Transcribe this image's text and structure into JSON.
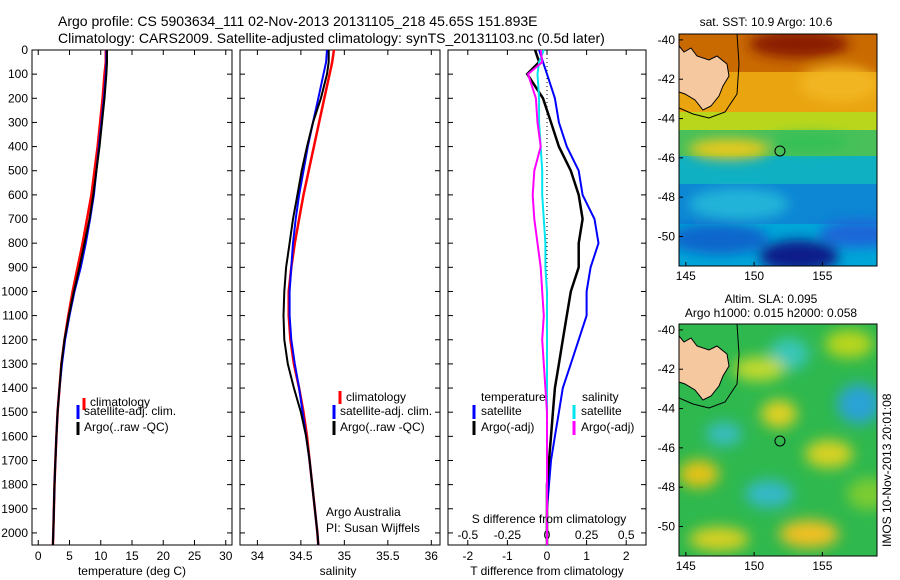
{
  "header": {
    "title_line1": "Argo profile: CS 5903634_111 02-Nov-2013 20131105_218 45.65S 151.893E",
    "title_line2": "Climatology: CARS2009. Satellite-adjusted climatology: synTS_20131103.nc (0.5d later)"
  },
  "depth_axis": {
    "ylim": [
      0,
      2050
    ],
    "ticks": [
      0,
      100,
      200,
      300,
      400,
      500,
      600,
      700,
      800,
      900,
      1000,
      1100,
      1200,
      1300,
      1400,
      1500,
      1600,
      1700,
      1800,
      1900,
      2000
    ]
  },
  "colors": {
    "climatology": "#ff0000",
    "satellite": "#0000ff",
    "argo": "#000000",
    "sal_satellite": "#00e5ee",
    "sal_argo": "#ff00ff"
  },
  "chart_data": [
    {
      "type": "line",
      "xlabel": "temperature (deg C)",
      "xlim": [
        -1,
        31
      ],
      "xticks": [
        0,
        5,
        10,
        15,
        20,
        25,
        30
      ],
      "legend": [
        "climatology",
        "satellite-adj. clim.",
        "Argo(..raw -QC)"
      ],
      "series": [
        {
          "name": "climatology",
          "depth": [
            0,
            50,
            100,
            200,
            300,
            400,
            500,
            600,
            700,
            800,
            900,
            1000,
            1100,
            1200,
            1300,
            1400,
            1500,
            1600,
            1700,
            1800,
            1900,
            2000,
            2050
          ],
          "values": [
            10.8,
            10.8,
            10.6,
            10.3,
            9.9,
            9.5,
            9.0,
            8.5,
            7.8,
            7.1,
            6.3,
            5.5,
            4.8,
            4.2,
            3.7,
            3.4,
            3.1,
            2.9,
            2.75,
            2.6,
            2.5,
            2.4,
            2.35
          ]
        },
        {
          "name": "satellite-adj. clim.",
          "depth": [
            0,
            50,
            100,
            200,
            300,
            400,
            500,
            600,
            700,
            800,
            900,
            1000,
            1100,
            1200,
            1300,
            1400,
            1500,
            1600,
            1700,
            1800,
            1900,
            2000,
            2050
          ],
          "values": [
            10.9,
            10.9,
            10.8,
            10.5,
            10.1,
            9.7,
            9.3,
            8.9,
            8.3,
            7.6,
            6.8,
            5.8,
            5.0,
            4.3,
            3.8,
            3.4,
            3.1,
            2.9,
            2.75,
            2.6,
            2.5,
            2.4,
            2.35
          ]
        },
        {
          "name": "Argo(..raw -QC)",
          "depth": [
            0,
            50,
            100,
            200,
            300,
            400,
            500,
            600,
            700,
            800,
            900,
            1000,
            1100,
            1200,
            1300,
            1400,
            1500,
            1600,
            1700,
            1800,
            1900,
            2000,
            2050
          ],
          "values": [
            11.0,
            11.0,
            10.9,
            10.6,
            10.2,
            9.8,
            9.3,
            8.8,
            8.2,
            7.4,
            6.6,
            5.7,
            4.9,
            4.2,
            3.7,
            3.4,
            3.1,
            2.9,
            2.75,
            2.6,
            2.5,
            2.4,
            2.35
          ]
        }
      ]
    },
    {
      "type": "line",
      "xlabel": "salinity",
      "xlim": [
        33.8,
        36.1
      ],
      "xticks": [
        34,
        34.5,
        35,
        35.5,
        36
      ],
      "legend": [
        "climatology",
        "satellite-adj. clim.",
        "Argo(..raw -QC)"
      ],
      "annotation": [
        "Argo Australia",
        "PI: Susan Wijffels"
      ],
      "series": [
        {
          "name": "climatology",
          "depth": [
            0,
            50,
            100,
            200,
            300,
            400,
            500,
            600,
            700,
            800,
            900,
            1000,
            1100,
            1200,
            1300,
            1400,
            1500,
            1600,
            1700,
            1800,
            1900,
            2000,
            2050
          ],
          "values": [
            34.88,
            34.86,
            34.83,
            34.77,
            34.71,
            34.65,
            34.59,
            34.53,
            34.48,
            34.43,
            34.39,
            34.36,
            34.36,
            34.38,
            34.42,
            34.48,
            34.53,
            34.57,
            34.6,
            34.63,
            34.66,
            34.69,
            34.7
          ]
        },
        {
          "name": "satellite-adj. clim.",
          "depth": [
            0,
            50,
            100,
            200,
            300,
            400,
            500,
            600,
            700,
            800,
            900,
            1000,
            1100,
            1200,
            1300,
            1400,
            1500,
            1600,
            1700,
            1800,
            1900,
            2000,
            2050
          ],
          "values": [
            34.8,
            34.79,
            34.76,
            34.7,
            34.64,
            34.58,
            34.53,
            34.48,
            34.44,
            34.41,
            34.39,
            34.37,
            34.37,
            34.39,
            34.43,
            34.48,
            34.52,
            34.56,
            34.6,
            34.63,
            34.66,
            34.69,
            34.7
          ]
        },
        {
          "name": "Argo(..raw -QC)",
          "depth": [
            0,
            50,
            100,
            200,
            300,
            400,
            500,
            600,
            700,
            800,
            900,
            1000,
            1100,
            1200,
            1300,
            1400,
            1500,
            1600,
            1700,
            1800,
            1900,
            2000,
            2050
          ],
          "values": [
            34.82,
            34.82,
            34.8,
            34.73,
            34.64,
            34.57,
            34.51,
            34.46,
            34.41,
            34.37,
            34.33,
            34.31,
            34.3,
            34.31,
            34.35,
            34.42,
            34.5,
            34.56,
            34.6,
            34.63,
            34.66,
            34.69,
            34.7
          ]
        }
      ]
    },
    {
      "type": "line",
      "xlabel": "T difference from climatology",
      "xlabel_top": "S difference from climatology",
      "xlim": [
        -2.5,
        2.5
      ],
      "xticks": [
        -2,
        -1,
        0,
        1,
        2
      ],
      "xticks_top_values": [
        -0.5,
        -0.25,
        0,
        0.25,
        0.5
      ],
      "xticks_top_labels": [
        "-0.5",
        "-0.25",
        "0",
        "0.25",
        "0.5"
      ],
      "legend_temperature": {
        "heading": "temperature",
        "items": [
          "satellite",
          "Argo(-adj)"
        ]
      },
      "legend_salinity": {
        "heading": "salinity",
        "items": [
          "satellite",
          "Argo(-adj)"
        ]
      },
      "series": [
        {
          "name": "satellite",
          "group": "temperature",
          "depth": [
            0,
            50,
            100,
            200,
            300,
            400,
            500,
            600,
            700,
            800,
            900,
            1000,
            1100,
            1200,
            1300,
            1400,
            1500,
            1600,
            1700,
            1800,
            1900,
            2000,
            2050
          ],
          "values": [
            -0.2,
            -0.1,
            0.0,
            0.2,
            0.3,
            0.5,
            0.8,
            0.9,
            1.2,
            1.3,
            1.1,
            1.0,
            1.0,
            0.8,
            0.6,
            0.4,
            0.3,
            0.2,
            0.1,
            0.05,
            0.0,
            0.0,
            0.0
          ]
        },
        {
          "name": "Argo(-adj)",
          "group": "temperature",
          "depth": [
            0,
            50,
            100,
            200,
            300,
            400,
            500,
            600,
            700,
            800,
            900,
            1000,
            1100,
            1200,
            1300,
            1400,
            1500,
            1600,
            1700,
            1800,
            1900,
            2000,
            2050
          ],
          "values": [
            -0.3,
            -0.2,
            -0.5,
            -0.1,
            0.1,
            0.3,
            0.6,
            0.8,
            0.9,
            0.8,
            0.8,
            0.6,
            0.5,
            0.4,
            0.3,
            0.2,
            0.15,
            0.1,
            0.05,
            0.0,
            0.0,
            0.0,
            0.0
          ]
        },
        {
          "name": "satellite",
          "group": "salinity",
          "depth": [
            0,
            50,
            100,
            200,
            300,
            400,
            500,
            600,
            700,
            800,
            900,
            1000,
            1100,
            1200,
            1300,
            1400,
            1500,
            1600,
            1700,
            1800,
            1900,
            2000,
            2050
          ],
          "values": [
            -0.02,
            -0.05,
            -0.06,
            -0.05,
            -0.05,
            -0.04,
            -0.03,
            -0.03,
            -0.02,
            -0.01,
            -0.01,
            0.0,
            0.0,
            0.0,
            0.0,
            0.0,
            0.0,
            0.0,
            0.0,
            0.0,
            0.0,
            0.0,
            0.0
          ]
        },
        {
          "name": "Argo(-adj)",
          "group": "salinity",
          "depth": [
            0,
            50,
            100,
            200,
            300,
            400,
            500,
            600,
            700,
            800,
            900,
            1000,
            1100,
            1200,
            1300,
            1400,
            1500,
            1600,
            1700,
            1800,
            1900,
            2000,
            2050
          ],
          "values": [
            -0.04,
            -0.03,
            -0.12,
            -0.07,
            -0.06,
            -0.04,
            -0.08,
            -0.09,
            -0.08,
            -0.06,
            -0.04,
            -0.03,
            -0.02,
            -0.03,
            -0.02,
            -0.01,
            0.0,
            0.0,
            0.0,
            0.0,
            0.0,
            0.0,
            0.0
          ]
        }
      ]
    },
    {
      "type": "heatmap",
      "title": "sat. SST: 10.9 Argo: 10.6",
      "xlim": [
        144.5,
        159
      ],
      "ylim": [
        -51.5,
        -39.7
      ],
      "xticks": [
        145,
        150,
        155
      ],
      "yticks": [
        -40,
        -42,
        -44,
        -46,
        -48,
        -50
      ],
      "marker": {
        "lon": 151.893,
        "lat": -45.65
      }
    },
    {
      "type": "heatmap",
      "title_line1": "Altim. SLA: 0.095",
      "title_line2": "Argo h1000: 0.015 h2000: 0.058",
      "xlim": [
        144.5,
        159
      ],
      "ylim": [
        -51.5,
        -39.7
      ],
      "xticks": [
        145,
        150,
        155
      ],
      "yticks": [
        -40,
        -42,
        -44,
        -46,
        -48,
        -50
      ],
      "marker": {
        "lon": 151.893,
        "lat": -45.65
      }
    }
  ],
  "footer": {
    "side_stamp": "IMOS 10-Nov-2013 20:01:08"
  }
}
